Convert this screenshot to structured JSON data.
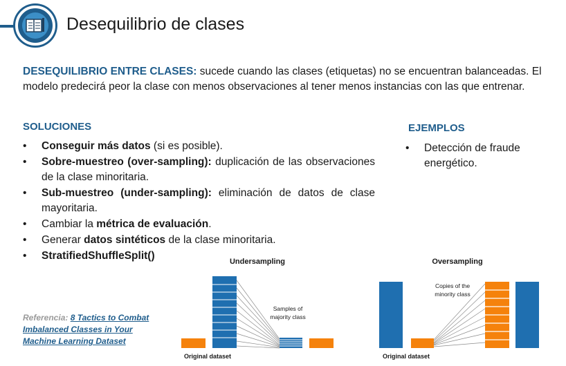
{
  "header": {
    "title": "Desequilibrio de clases",
    "icon": "book-icon"
  },
  "intro": {
    "term": "DESEQUILIBRIO ENTRE CLASES:",
    "text": " sucede cuando las clases (etiquetas) no se encuentran balanceadas. El modelo predecirá peor la clase con menos observaciones al tener menos instancias con las que entrenar."
  },
  "solutions": {
    "heading": "SOLUCIONES",
    "items": [
      {
        "bold": "Conseguir más datos",
        "rest": " (si es posible)."
      },
      {
        "bold": "Sobre-muestreo (over-sampling):",
        "rest": " duplicación de las observaciones de la clase minoritaria."
      },
      {
        "bold": "Sub-muestreo (under-sampling):",
        "rest": " eliminación de datos de clase mayoritaria."
      },
      {
        "pre": "Cambiar la ",
        "bold": "métrica de evaluación",
        "rest": "."
      },
      {
        "pre": "Generar ",
        "bold": "datos sintéticos",
        "rest": " de la clase minoritaria."
      },
      {
        "bold": "StratifiedShuffleSplit()"
      }
    ]
  },
  "examples": {
    "heading": "EJEMPLOS",
    "items": [
      "Detección de fraude energético."
    ]
  },
  "reference": {
    "label": "Referencia: ",
    "link_text": "8 Tactics to Combat Imbalanced Classes in Your Machine Learning Dataset"
  },
  "diagram": {
    "undersampling": {
      "title": "Undersampling",
      "majority_note_line1": "Samples of",
      "majority_note_line2": "majority class",
      "footer": "Original dataset"
    },
    "oversampling": {
      "title": "Oversampling",
      "minority_note_line1": "Copies of the",
      "minority_note_line2": "minority class",
      "footer": "Original dataset"
    },
    "colors": {
      "majority": "#1f6fb0",
      "minority": "#f5820c",
      "accent": "#1f5d8c"
    }
  }
}
